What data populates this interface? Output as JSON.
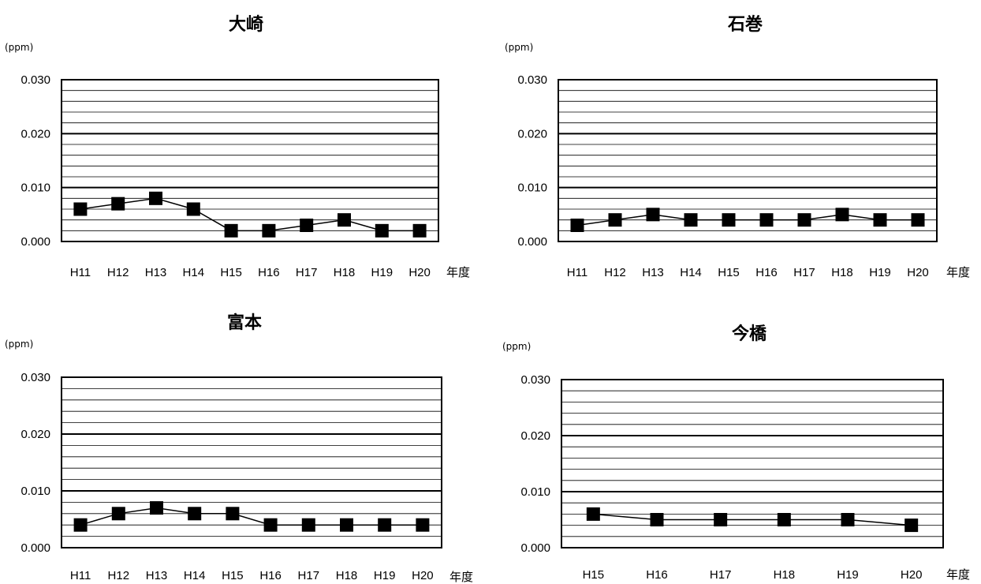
{
  "chart_data": [
    {
      "type": "line",
      "title": "大崎",
      "unit": "(ppm)",
      "xlabel": "年度",
      "categories": [
        "H11",
        "H12",
        "H13",
        "H14",
        "H15",
        "H16",
        "H17",
        "H18",
        "H19",
        "H20"
      ],
      "values": [
        0.006,
        0.007,
        0.008,
        0.006,
        0.002,
        0.002,
        0.003,
        0.004,
        0.002,
        0.002
      ],
      "ylim": [
        0,
        0.03
      ],
      "yticks": [
        "0.000",
        "0.010",
        "0.020",
        "0.030"
      ],
      "grid": true,
      "legend": false
    },
    {
      "type": "line",
      "title": "石巻",
      "unit": "(ppm)",
      "xlabel": "年度",
      "categories": [
        "H11",
        "H12",
        "H13",
        "H14",
        "H15",
        "H16",
        "H17",
        "H18",
        "H19",
        "H20"
      ],
      "values": [
        0.003,
        0.004,
        0.005,
        0.004,
        0.004,
        0.004,
        0.004,
        0.005,
        0.004,
        0.004
      ],
      "ylim": [
        0,
        0.03
      ],
      "yticks": [
        "0.000",
        "0.010",
        "0.020",
        "0.030"
      ],
      "grid": true,
      "legend": false
    },
    {
      "type": "line",
      "title": "富本",
      "unit": "(ppm)",
      "xlabel": "年度",
      "categories": [
        "H11",
        "H12",
        "H13",
        "H14",
        "H15",
        "H16",
        "H17",
        "H18",
        "H19",
        "H20"
      ],
      "values": [
        0.004,
        0.006,
        0.007,
        0.006,
        0.006,
        0.004,
        0.004,
        0.004,
        0.004,
        0.004
      ],
      "ylim": [
        0,
        0.03
      ],
      "yticks": [
        "0.000",
        "0.010",
        "0.020",
        "0.030"
      ],
      "grid": true,
      "legend": false
    },
    {
      "type": "line",
      "title": "今橋",
      "unit": "(ppm)",
      "xlabel": "年度",
      "categories": [
        "H15",
        "H16",
        "H17",
        "H18",
        "H19",
        "H20"
      ],
      "values": [
        0.006,
        0.005,
        0.005,
        0.005,
        0.005,
        0.004
      ],
      "ylim": [
        0,
        0.03
      ],
      "yticks": [
        "0.000",
        "0.010",
        "0.020",
        "0.030"
      ],
      "grid": true,
      "legend": false
    }
  ]
}
